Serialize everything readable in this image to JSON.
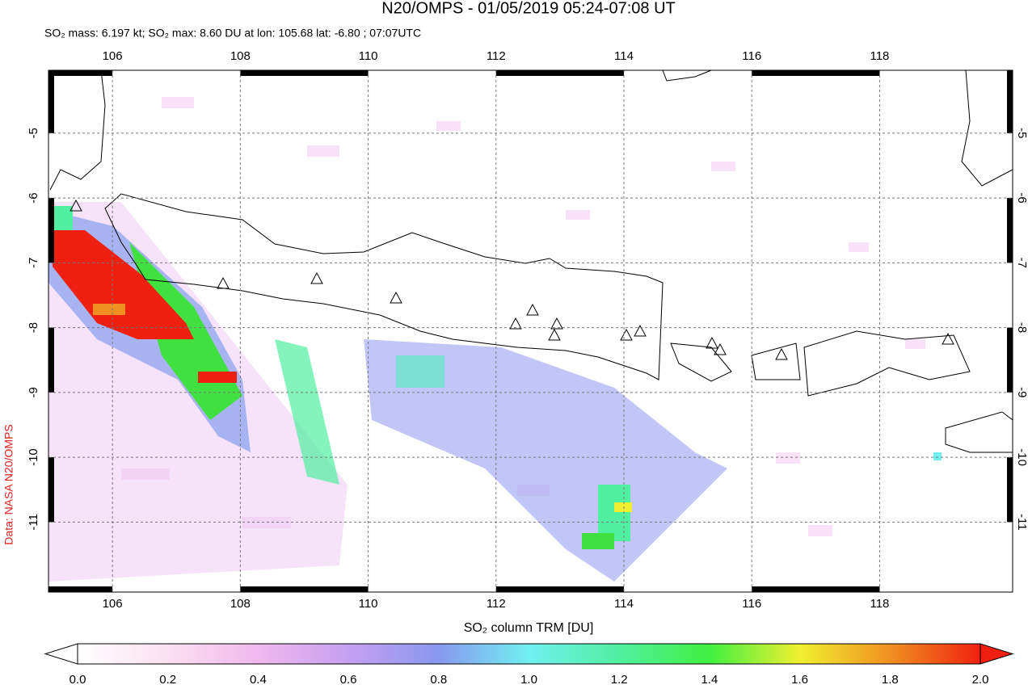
{
  "chart_data": {
    "type": "map",
    "title": "N20/OMPS - 01/05/2019 05:24-07:08 UT",
    "subtitle": "SO₂ mass: 6.197 kt; SO₂ max: 8.60 DU at lon: 105.68 lat: -6.80 ; 07:07UTC",
    "xlabel": "SO₂ column TRM [DU]",
    "credit": "Data: NASA N20/OMPS",
    "xlim": [
      105,
      120.08
    ],
    "xticks": [
      106,
      108,
      110,
      112,
      114,
      116,
      118
    ],
    "ylim": [
      -12.08,
      -4.03
    ],
    "yticks": [
      -5,
      -6,
      -7,
      -8,
      -9,
      -10,
      -11
    ],
    "grid": true,
    "colorbar": {
      "lim": [
        0,
        2
      ],
      "ticks": [
        {
          "value": 0,
          "label": "0.0"
        },
        {
          "value": 0.2,
          "label": "0.2"
        },
        {
          "value": 0.4,
          "label": "0.4"
        },
        {
          "value": 0.6,
          "label": "0.6"
        },
        {
          "value": 0.8,
          "label": "0.8"
        },
        {
          "value": 1,
          "label": "1.0"
        },
        {
          "value": 1.2,
          "label": "1.2"
        },
        {
          "value": 1.4,
          "label": "1.4"
        },
        {
          "value": 1.6,
          "label": "1.6"
        },
        {
          "value": 1.8,
          "label": "1.8"
        },
        {
          "value": 2,
          "label": "2.0"
        }
      ]
    }
  }
}
